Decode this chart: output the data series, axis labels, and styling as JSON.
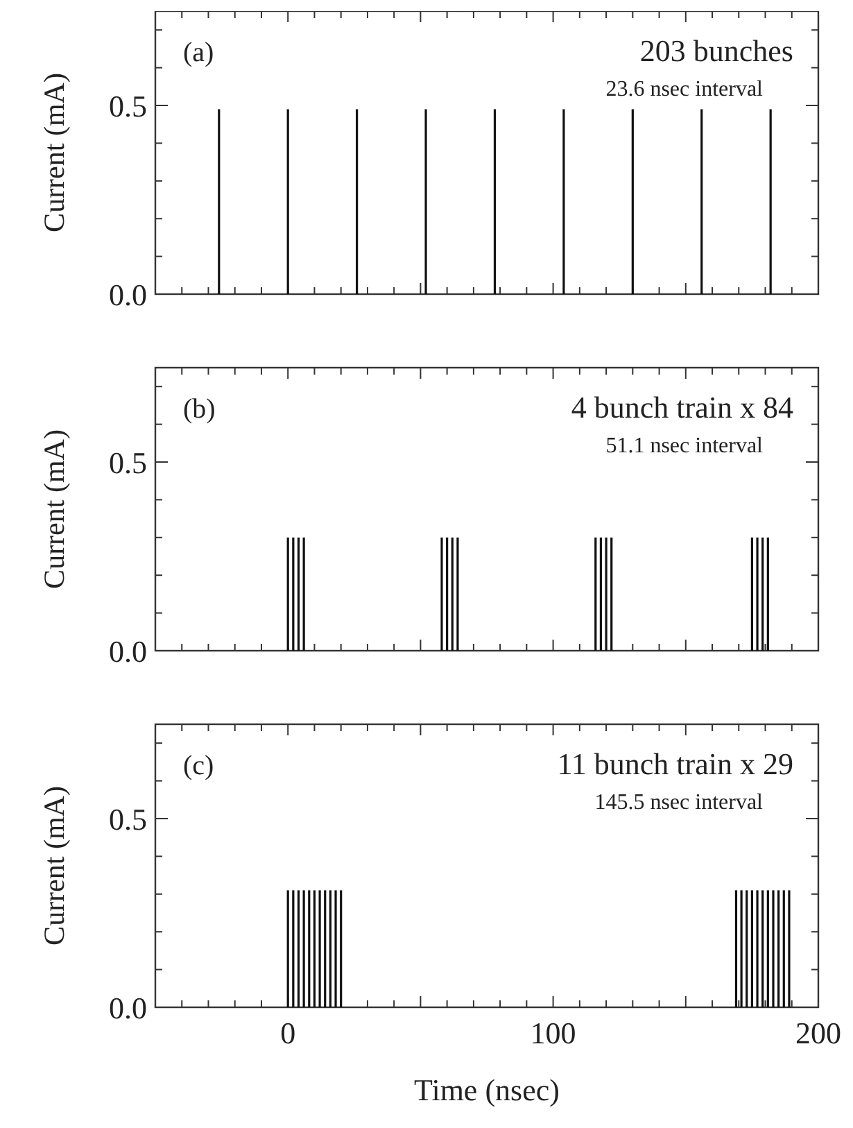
{
  "chart_data": [
    {
      "type": "bar",
      "title": "203 bunches",
      "subtitle": "23.6 nsec interval",
      "annotations": [
        "(a)"
      ],
      "ylabel": "Current  (mA)",
      "x": [
        -26,
        0,
        26,
        52,
        78,
        104,
        130,
        156,
        182
      ],
      "values": [
        0.49,
        0.49,
        0.49,
        0.49,
        0.49,
        0.49,
        0.49,
        0.49,
        0.49
      ],
      "color": "#111111",
      "xlim": [
        -50,
        200
      ],
      "ylim": [
        0,
        0.75
      ],
      "xticks": [
        {
          "value": -50,
          "label": null
        },
        {
          "value": -40,
          "label": null
        },
        {
          "value": -30,
          "label": null
        },
        {
          "value": -20,
          "label": null
        },
        {
          "value": -10,
          "label": null
        },
        {
          "value": 0,
          "label": null
        },
        {
          "value": 10,
          "label": null
        },
        {
          "value": 20,
          "label": null
        },
        {
          "value": 30,
          "label": null
        },
        {
          "value": 40,
          "label": null
        },
        {
          "value": 50,
          "label": null
        },
        {
          "value": 60,
          "label": null
        },
        {
          "value": 70,
          "label": null
        },
        {
          "value": 80,
          "label": null
        },
        {
          "value": 90,
          "label": null
        },
        {
          "value": 100,
          "label": null
        },
        {
          "value": 110,
          "label": null
        },
        {
          "value": 120,
          "label": null
        },
        {
          "value": 130,
          "label": null
        },
        {
          "value": 140,
          "label": null
        },
        {
          "value": 150,
          "label": null
        },
        {
          "value": 160,
          "label": null
        },
        {
          "value": 170,
          "label": null
        },
        {
          "value": 180,
          "label": null
        },
        {
          "value": 190,
          "label": null
        },
        {
          "value": 200,
          "label": null
        }
      ],
      "yticks": [
        {
          "value": 0,
          "label": "0.0"
        },
        {
          "value": 0.1,
          "label": null
        },
        {
          "value": 0.2,
          "label": null
        },
        {
          "value": 0.3,
          "label": null
        },
        {
          "value": 0.4,
          "label": null
        },
        {
          "value": 0.5,
          "label": "0.5"
        },
        {
          "value": 0.6,
          "label": null
        },
        {
          "value": 0.7,
          "label": null
        }
      ],
      "tick_labels": "y"
    },
    {
      "type": "bar",
      "title": "4 bunch train x 84",
      "subtitle": "51.1 nsec interval",
      "annotations": [
        "(b)"
      ],
      "ylabel": "Current  (mA)",
      "x": [
        0,
        2,
        4,
        6,
        58,
        60,
        62,
        64,
        116,
        118,
        120,
        122,
        175,
        177,
        179,
        181
      ],
      "values": [
        0.3,
        0.3,
        0.3,
        0.3,
        0.3,
        0.3,
        0.3,
        0.3,
        0.3,
        0.3,
        0.3,
        0.3,
        0.3,
        0.3,
        0.3,
        0.3
      ],
      "color": "#111111",
      "xlim": [
        -50,
        200
      ],
      "ylim": [
        0,
        0.75
      ],
      "xticks": [
        {
          "value": -50,
          "label": null
        },
        {
          "value": -40,
          "label": null
        },
        {
          "value": -30,
          "label": null
        },
        {
          "value": -20,
          "label": null
        },
        {
          "value": -10,
          "label": null
        },
        {
          "value": 0,
          "label": null
        },
        {
          "value": 10,
          "label": null
        },
        {
          "value": 20,
          "label": null
        },
        {
          "value": 30,
          "label": null
        },
        {
          "value": 40,
          "label": null
        },
        {
          "value": 50,
          "label": null
        },
        {
          "value": 60,
          "label": null
        },
        {
          "value": 70,
          "label": null
        },
        {
          "value": 80,
          "label": null
        },
        {
          "value": 90,
          "label": null
        },
        {
          "value": 100,
          "label": null
        },
        {
          "value": 110,
          "label": null
        },
        {
          "value": 120,
          "label": null
        },
        {
          "value": 130,
          "label": null
        },
        {
          "value": 140,
          "label": null
        },
        {
          "value": 150,
          "label": null
        },
        {
          "value": 160,
          "label": null
        },
        {
          "value": 170,
          "label": null
        },
        {
          "value": 180,
          "label": null
        },
        {
          "value": 190,
          "label": null
        },
        {
          "value": 200,
          "label": null
        }
      ],
      "yticks": [
        {
          "value": 0,
          "label": "0.0"
        },
        {
          "value": 0.1,
          "label": null
        },
        {
          "value": 0.2,
          "label": null
        },
        {
          "value": 0.3,
          "label": null
        },
        {
          "value": 0.4,
          "label": null
        },
        {
          "value": 0.5,
          "label": "0.5"
        },
        {
          "value": 0.6,
          "label": null
        },
        {
          "value": 0.7,
          "label": null
        }
      ],
      "tick_labels": "y"
    },
    {
      "type": "bar",
      "title": "11 bunch train x 29",
      "subtitle": "145.5 nsec interval",
      "annotations": [
        "(c)"
      ],
      "ylabel": "Current  (mA)",
      "xlabel": "Time  (nsec)",
      "x": [
        0,
        2,
        4,
        6,
        8,
        10,
        12,
        14,
        16,
        18,
        20,
        169,
        171,
        173,
        175,
        177,
        179,
        181,
        183,
        185,
        187,
        189
      ],
      "values": [
        0.31,
        0.31,
        0.31,
        0.31,
        0.31,
        0.31,
        0.31,
        0.31,
        0.31,
        0.31,
        0.31,
        0.31,
        0.31,
        0.31,
        0.31,
        0.31,
        0.31,
        0.31,
        0.31,
        0.31,
        0.31,
        0.31
      ],
      "color": "#111111",
      "xlim": [
        -50,
        200
      ],
      "ylim": [
        0,
        0.75
      ],
      "xticks": [
        {
          "value": -50,
          "label": null
        },
        {
          "value": -40,
          "label": null
        },
        {
          "value": -30,
          "label": null
        },
        {
          "value": -20,
          "label": null
        },
        {
          "value": -10,
          "label": null
        },
        {
          "value": 0,
          "label": "0"
        },
        {
          "value": 10,
          "label": null
        },
        {
          "value": 20,
          "label": null
        },
        {
          "value": 30,
          "label": null
        },
        {
          "value": 40,
          "label": null
        },
        {
          "value": 50,
          "label": null
        },
        {
          "value": 60,
          "label": null
        },
        {
          "value": 70,
          "label": null
        },
        {
          "value": 80,
          "label": null
        },
        {
          "value": 90,
          "label": null
        },
        {
          "value": 100,
          "label": "100"
        },
        {
          "value": 110,
          "label": null
        },
        {
          "value": 120,
          "label": null
        },
        {
          "value": 130,
          "label": null
        },
        {
          "value": 140,
          "label": null
        },
        {
          "value": 150,
          "label": null
        },
        {
          "value": 160,
          "label": null
        },
        {
          "value": 170,
          "label": null
        },
        {
          "value": 180,
          "label": null
        },
        {
          "value": 190,
          "label": null
        },
        {
          "value": 200,
          "label": "200"
        }
      ],
      "yticks": [
        {
          "value": 0,
          "label": "0.0"
        },
        {
          "value": 0.1,
          "label": null
        },
        {
          "value": 0.2,
          "label": null
        },
        {
          "value": 0.3,
          "label": null
        },
        {
          "value": 0.4,
          "label": null
        },
        {
          "value": 0.5,
          "label": "0.5"
        },
        {
          "value": 0.6,
          "label": null
        },
        {
          "value": 0.7,
          "label": null
        }
      ]
    }
  ]
}
